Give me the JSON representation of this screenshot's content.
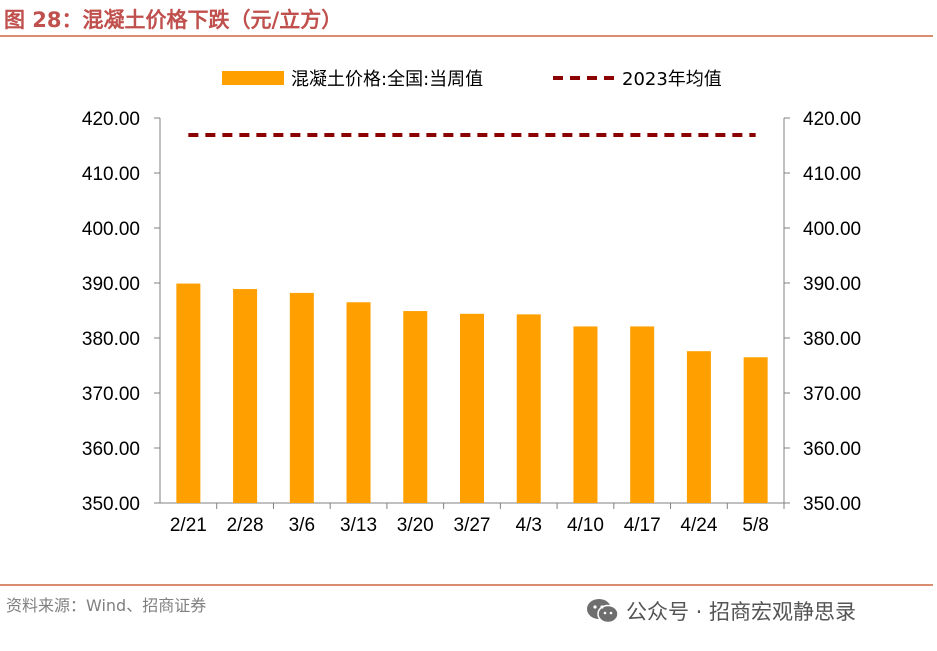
{
  "header": {
    "figure_title": "图 28：混凝土价格下跌（元/立方）"
  },
  "footer": {
    "source": "资料来源：Wind、招商证券",
    "watermark": "公众号 · 招商宏观静思录",
    "watermark_icon": "wechat-icon"
  },
  "colors": {
    "bar": "#ffa000",
    "avg_line": "#8b0000",
    "title": "#c0504d",
    "rule": "#d98c6e"
  },
  "chart_data": {
    "type": "bar",
    "title": "混凝土价格下跌（元/立方）",
    "categories": [
      "2/21",
      "2/28",
      "3/6",
      "3/13",
      "3/20",
      "3/27",
      "4/3",
      "4/10",
      "4/17",
      "4/24",
      "5/8"
    ],
    "series": [
      {
        "name": "混凝土价格:全国:当周值",
        "type": "bar",
        "values": [
          389.9,
          388.9,
          388.2,
          386.5,
          384.9,
          384.4,
          384.3,
          382.1,
          382.1,
          377.6,
          376.5
        ]
      },
      {
        "name": "2023年均值",
        "type": "line",
        "style": "dashed",
        "values": [
          416.9,
          416.9,
          416.9,
          416.9,
          416.9,
          416.9,
          416.9,
          416.9,
          416.9,
          416.9,
          416.9
        ]
      }
    ],
    "ylim": [
      350,
      420
    ],
    "yticks": [
      "350.00",
      "360.00",
      "370.00",
      "380.00",
      "390.00",
      "400.00",
      "410.00",
      "420.00"
    ],
    "secondary_yticks": [
      "350.00",
      "360.00",
      "370.00",
      "380.00",
      "390.00",
      "400.00",
      "410.00",
      "420.00"
    ],
    "grid": false,
    "legend_position": "top-center"
  }
}
